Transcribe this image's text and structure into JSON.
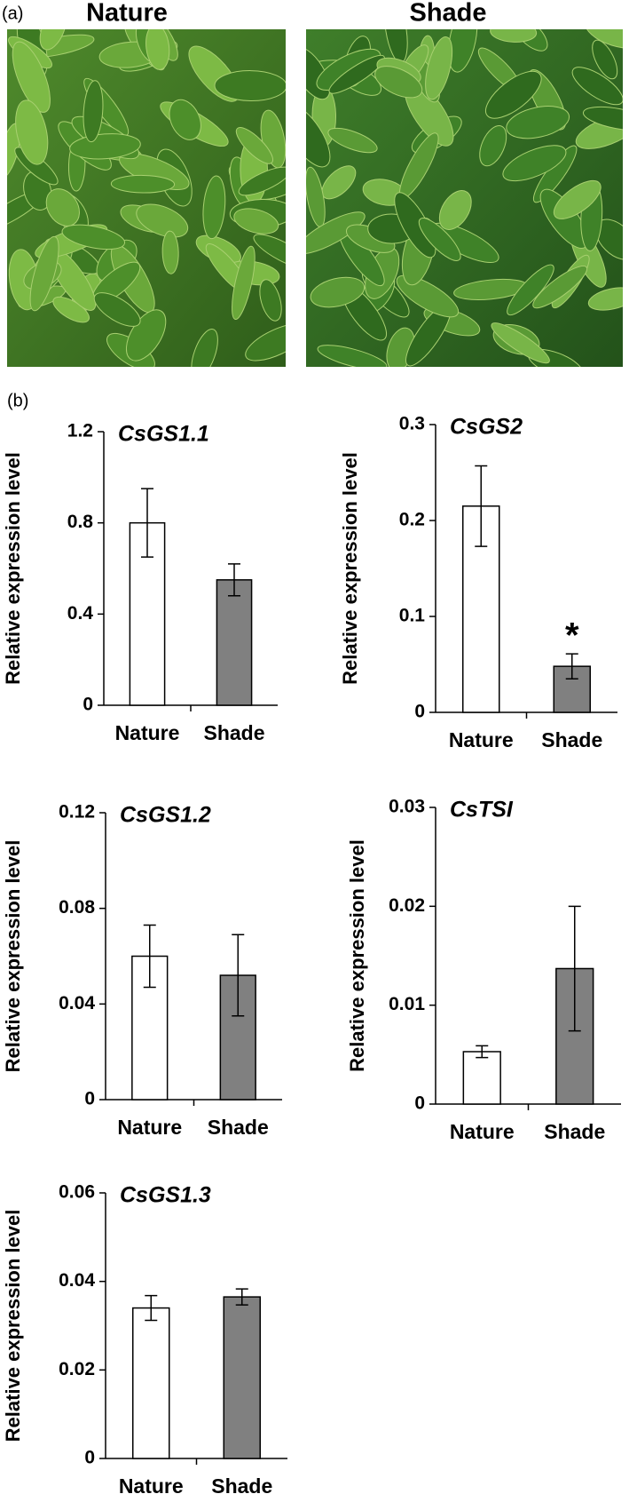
{
  "photos": {
    "panel_label": "(a)",
    "labels": [
      "Nature",
      "Shade"
    ]
  },
  "panel_b_label": "(b)",
  "chart_data": [
    {
      "type": "bar",
      "title": "CsGS1.1",
      "ylabel": "Relative expression level",
      "categories": [
        "Nature",
        "Shade"
      ],
      "values": [
        0.8,
        0.55
      ],
      "errors": [
        0.15,
        0.07
      ],
      "colors": [
        "#ffffff",
        "#808080"
      ],
      "ylim": [
        0,
        1.2
      ],
      "yticks": [
        0,
        0.4,
        0.8,
        1.2
      ],
      "significance": [
        null,
        null
      ],
      "grid": false
    },
    {
      "type": "bar",
      "title": "CsGS2",
      "ylabel": "Relative expression level",
      "categories": [
        "Nature",
        "Shade"
      ],
      "values": [
        0.215,
        0.048
      ],
      "errors": [
        0.042,
        0.013
      ],
      "colors": [
        "#ffffff",
        "#808080"
      ],
      "ylim": [
        0,
        0.3
      ],
      "yticks": [
        0,
        0.1,
        0.2,
        0.3
      ],
      "significance": [
        null,
        "*"
      ],
      "grid": false
    },
    {
      "type": "bar",
      "title": "CsGS1.2",
      "ylabel": "Relative expression level",
      "categories": [
        "Nature",
        "Shade"
      ],
      "values": [
        0.06,
        0.052
      ],
      "errors": [
        0.013,
        0.017
      ],
      "colors": [
        "#ffffff",
        "#808080"
      ],
      "ylim": [
        0,
        0.12
      ],
      "yticks": [
        0,
        0.04,
        0.08,
        0.12
      ],
      "significance": [
        null,
        null
      ],
      "grid": false
    },
    {
      "type": "bar",
      "title": "CsTSI",
      "ylabel": "Relative expression level",
      "categories": [
        "Nature",
        "Shade"
      ],
      "values": [
        0.0053,
        0.0137
      ],
      "errors": [
        0.0006,
        0.0063
      ],
      "colors": [
        "#ffffff",
        "#808080"
      ],
      "ylim": [
        0,
        0.03
      ],
      "yticks": [
        0,
        0.01,
        0.02,
        0.03
      ],
      "significance": [
        null,
        null
      ],
      "grid": false
    },
    {
      "type": "bar",
      "title": "CsGS1.3",
      "ylabel": "Relative expression level",
      "categories": [
        "Nature",
        "Shade"
      ],
      "values": [
        0.034,
        0.0365
      ],
      "errors": [
        0.0028,
        0.0018
      ],
      "colors": [
        "#ffffff",
        "#808080"
      ],
      "ylim": [
        0,
        0.06
      ],
      "yticks": [
        0,
        0.02,
        0.04,
        0.06
      ],
      "significance": [
        null,
        null
      ],
      "grid": false
    }
  ]
}
